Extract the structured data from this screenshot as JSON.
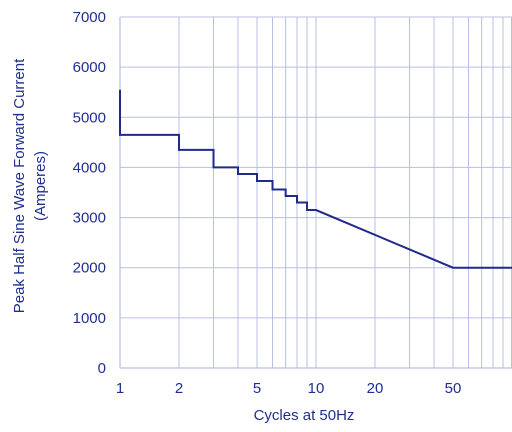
{
  "chart_data": {
    "type": "line",
    "xlabel": "Cycles at 50Hz",
    "ylabel_line1": "Peak Half Sine Wave Forward Current",
    "ylabel_line2": "(Amperes)",
    "x_scale": "log",
    "xlim": [
      1,
      100
    ],
    "ylim": [
      0,
      7000
    ],
    "y_ticks": [
      0,
      1000,
      2000,
      3000,
      4000,
      5000,
      6000,
      7000
    ],
    "x_tick_labels": [
      {
        "value": 1,
        "label": "1"
      },
      {
        "value": 2,
        "label": "2"
      },
      {
        "value": 5,
        "label": "5"
      },
      {
        "value": 10,
        "label": "10"
      },
      {
        "value": 20,
        "label": "20"
      },
      {
        "value": 50,
        "label": "50"
      }
    ],
    "x_gridlines": [
      1,
      2,
      3,
      4,
      5,
      6,
      7,
      8,
      9,
      10,
      20,
      30,
      40,
      50,
      60,
      70,
      80,
      90,
      100
    ],
    "grid": true,
    "line_color": "#1f2a8c",
    "grid_color": "#b7bfe3",
    "text_color": "#1f2f8f",
    "series": [
      {
        "points": [
          [
            1,
            5550
          ],
          [
            1,
            4650
          ],
          [
            2,
            4650
          ],
          [
            2,
            4350
          ],
          [
            3,
            4350
          ],
          [
            3,
            4000
          ],
          [
            4,
            4000
          ],
          [
            4,
            3870
          ],
          [
            5,
            3870
          ],
          [
            5,
            3730
          ],
          [
            6,
            3730
          ],
          [
            6,
            3560
          ],
          [
            7,
            3560
          ],
          [
            7,
            3430
          ],
          [
            8,
            3430
          ],
          [
            8,
            3300
          ],
          [
            9,
            3300
          ],
          [
            9,
            3150
          ],
          [
            10,
            3150
          ],
          [
            50,
            2000
          ],
          [
            100,
            2000
          ]
        ]
      }
    ]
  }
}
